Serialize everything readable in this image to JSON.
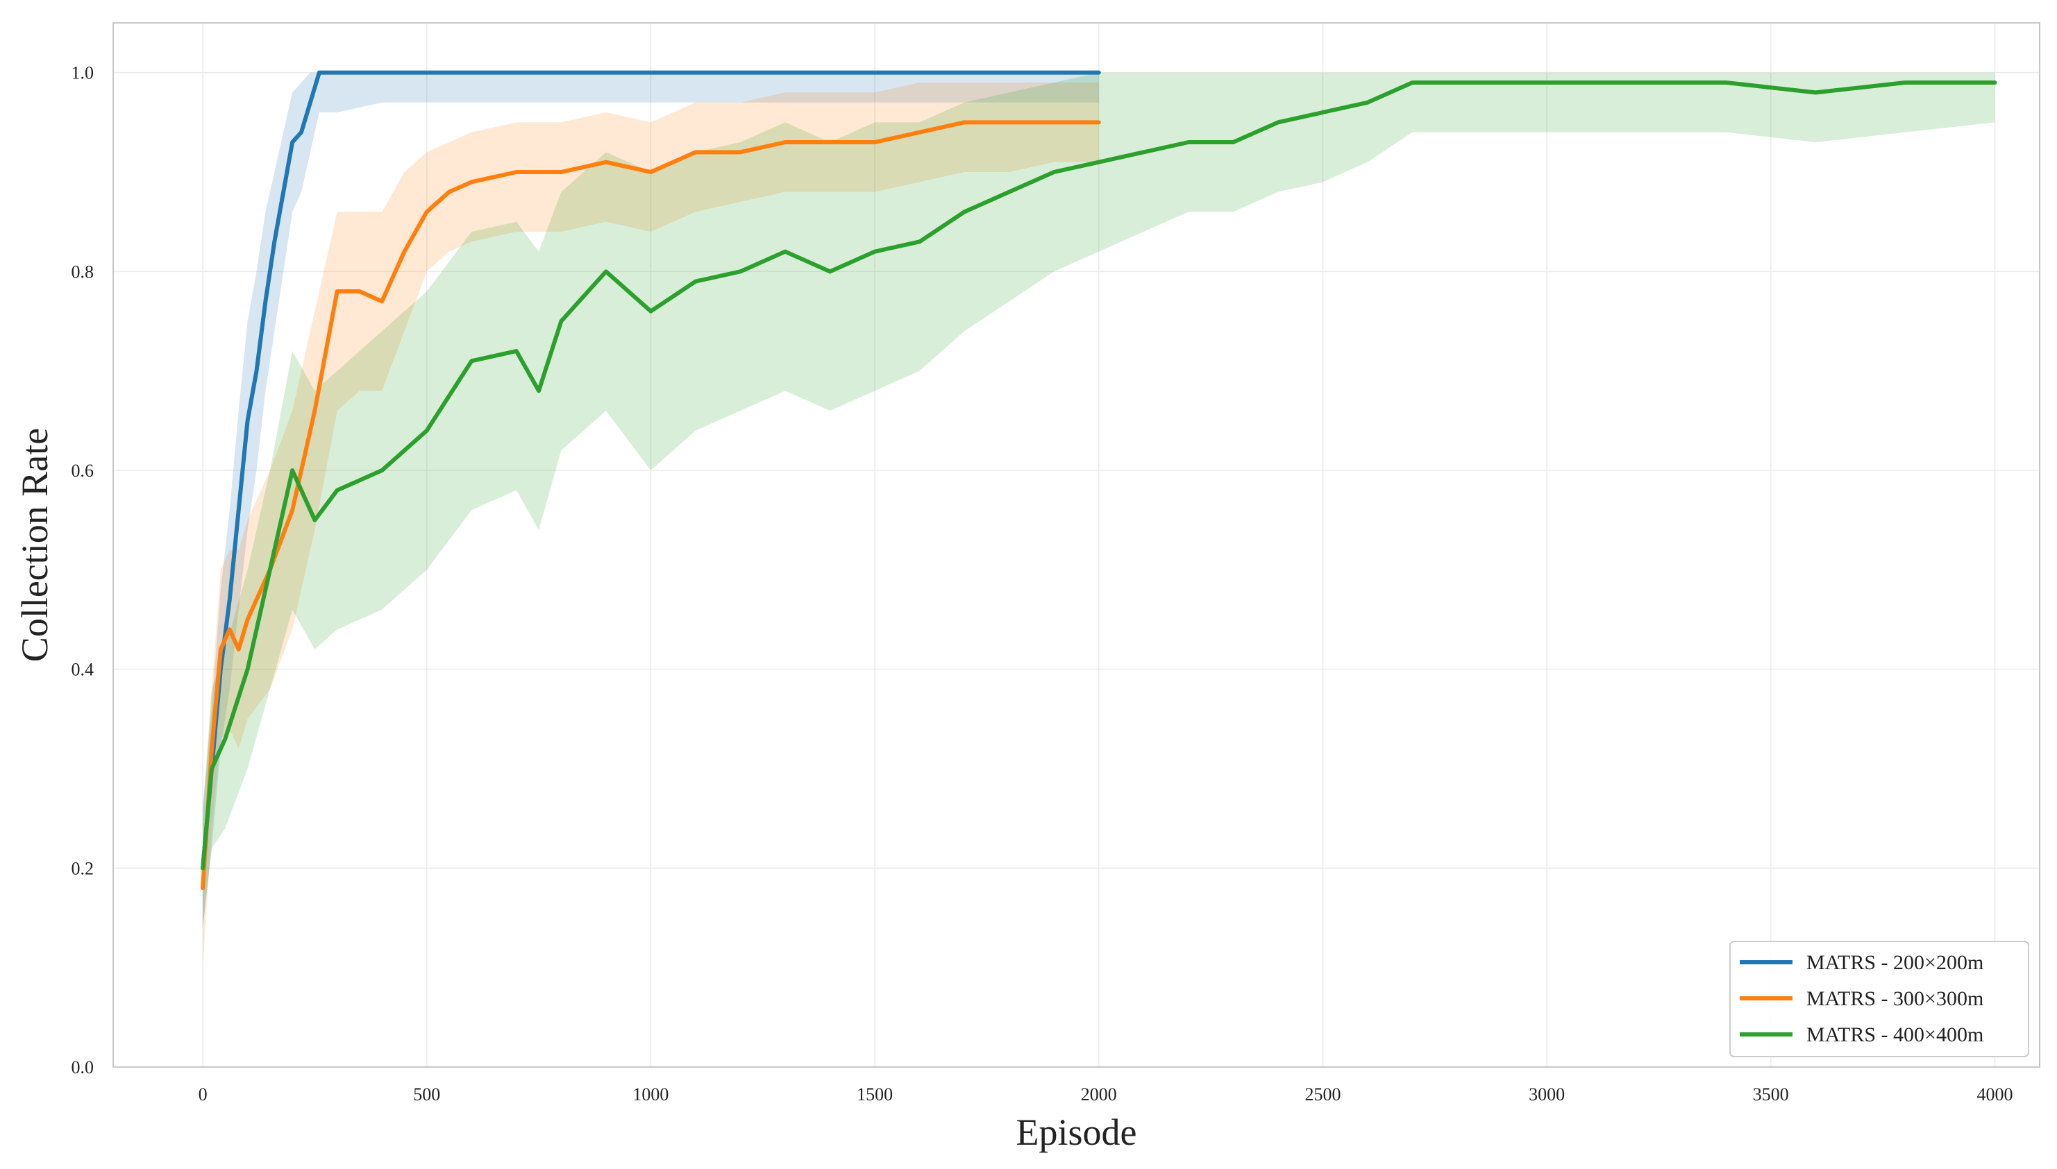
{
  "chart_data": {
    "type": "line",
    "title": "",
    "xlabel": "Episode",
    "ylabel": "Collection Rate",
    "xlim": [
      -200,
      4100
    ],
    "ylim": [
      0.0,
      1.05
    ],
    "x_ticks": [
      0,
      500,
      1000,
      1500,
      2000,
      2500,
      3000,
      3500,
      4000
    ],
    "y_ticks": [
      0.0,
      0.2,
      0.4,
      0.6,
      0.8,
      1.0
    ],
    "x_tick_labels": [
      "0",
      "500",
      "1000",
      "1500",
      "2000",
      "2500",
      "3000",
      "3500",
      "4000"
    ],
    "y_tick_labels": [
      "0.0",
      "0.2",
      "0.4",
      "0.6",
      "0.8",
      "1.0"
    ],
    "grid": true,
    "legend_position": "bottom-right",
    "series": [
      {
        "name": "MATRS - 200×200m",
        "color": "#1f77b4",
        "x": [
          0,
          20,
          40,
          60,
          80,
          100,
          120,
          140,
          160,
          180,
          200,
          220,
          240,
          260,
          300,
          400,
          500,
          600,
          700,
          800,
          900,
          1000,
          1100,
          1200,
          1300,
          1400,
          1500,
          1600,
          1700,
          1800,
          1900,
          2000
        ],
        "y": [
          0.2,
          0.3,
          0.4,
          0.47,
          0.56,
          0.65,
          0.7,
          0.77,
          0.83,
          0.88,
          0.93,
          0.94,
          0.97,
          1.0,
          1.0,
          1.0,
          1.0,
          1.0,
          1.0,
          1.0,
          1.0,
          1.0,
          1.0,
          1.0,
          1.0,
          1.0,
          1.0,
          1.0,
          1.0,
          1.0,
          1.0,
          1.0
        ],
        "band_low": [
          0.14,
          0.22,
          0.32,
          0.38,
          0.46,
          0.54,
          0.6,
          0.68,
          0.74,
          0.8,
          0.86,
          0.88,
          0.92,
          0.96,
          0.96,
          0.97,
          0.97,
          0.97,
          0.97,
          0.97,
          0.97,
          0.97,
          0.97,
          0.97,
          0.97,
          0.97,
          0.97,
          0.97,
          0.97,
          0.97,
          0.97,
          0.97
        ],
        "band_high": [
          0.26,
          0.36,
          0.48,
          0.56,
          0.66,
          0.75,
          0.8,
          0.86,
          0.9,
          0.94,
          0.98,
          0.99,
          1.0,
          1.0,
          1.0,
          1.0,
          1.0,
          1.0,
          1.0,
          1.0,
          1.0,
          1.0,
          1.0,
          1.0,
          1.0,
          1.0,
          1.0,
          1.0,
          1.0,
          1.0,
          1.0,
          1.0
        ]
      },
      {
        "name": "MATRS - 300×300m",
        "color": "#ff7f0e",
        "x": [
          0,
          20,
          40,
          60,
          80,
          100,
          150,
          200,
          250,
          300,
          350,
          400,
          450,
          500,
          550,
          600,
          700,
          800,
          900,
          1000,
          1100,
          1200,
          1300,
          1400,
          1500,
          1600,
          1700,
          1800,
          1900,
          2000
        ],
        "y": [
          0.18,
          0.32,
          0.42,
          0.44,
          0.42,
          0.45,
          0.5,
          0.56,
          0.66,
          0.78,
          0.78,
          0.77,
          0.82,
          0.86,
          0.88,
          0.89,
          0.9,
          0.9,
          0.91,
          0.9,
          0.92,
          0.92,
          0.93,
          0.93,
          0.93,
          0.94,
          0.95,
          0.95,
          0.95,
          0.95
        ],
        "band_low": [
          0.1,
          0.24,
          0.33,
          0.34,
          0.32,
          0.35,
          0.38,
          0.44,
          0.54,
          0.66,
          0.68,
          0.68,
          0.74,
          0.8,
          0.82,
          0.83,
          0.84,
          0.84,
          0.85,
          0.84,
          0.86,
          0.87,
          0.88,
          0.88,
          0.88,
          0.89,
          0.9,
          0.9,
          0.91,
          0.91
        ],
        "band_high": [
          0.24,
          0.38,
          0.5,
          0.52,
          0.52,
          0.55,
          0.6,
          0.66,
          0.76,
          0.86,
          0.86,
          0.86,
          0.9,
          0.92,
          0.93,
          0.94,
          0.95,
          0.95,
          0.96,
          0.95,
          0.97,
          0.97,
          0.98,
          0.98,
          0.98,
          0.99,
          0.99,
          0.99,
          0.99,
          0.99
        ]
      },
      {
        "name": "MATRS - 400×400m",
        "color": "#2ca02c",
        "x": [
          0,
          20,
          50,
          100,
          150,
          200,
          250,
          300,
          400,
          500,
          600,
          700,
          750,
          800,
          900,
          1000,
          1100,
          1200,
          1300,
          1400,
          1500,
          1600,
          1700,
          1800,
          1900,
          2000,
          2100,
          2200,
          2300,
          2400,
          2500,
          2600,
          2700,
          2800,
          2900,
          3000,
          3200,
          3400,
          3600,
          3800,
          4000
        ],
        "y": [
          0.2,
          0.3,
          0.33,
          0.4,
          0.5,
          0.6,
          0.55,
          0.58,
          0.6,
          0.64,
          0.71,
          0.72,
          0.68,
          0.75,
          0.8,
          0.76,
          0.79,
          0.8,
          0.82,
          0.8,
          0.82,
          0.83,
          0.86,
          0.88,
          0.9,
          0.91,
          0.92,
          0.93,
          0.93,
          0.95,
          0.96,
          0.97,
          0.99,
          0.99,
          0.99,
          0.99,
          0.99,
          0.99,
          0.98,
          0.99,
          0.99
        ],
        "band_low": [
          0.14,
          0.22,
          0.24,
          0.3,
          0.38,
          0.46,
          0.42,
          0.44,
          0.46,
          0.5,
          0.56,
          0.58,
          0.54,
          0.62,
          0.66,
          0.6,
          0.64,
          0.66,
          0.68,
          0.66,
          0.68,
          0.7,
          0.74,
          0.77,
          0.8,
          0.82,
          0.84,
          0.86,
          0.86,
          0.88,
          0.89,
          0.91,
          0.94,
          0.94,
          0.94,
          0.94,
          0.94,
          0.94,
          0.93,
          0.94,
          0.95
        ],
        "band_high": [
          0.26,
          0.38,
          0.42,
          0.5,
          0.6,
          0.72,
          0.68,
          0.7,
          0.74,
          0.78,
          0.84,
          0.85,
          0.82,
          0.88,
          0.92,
          0.9,
          0.92,
          0.93,
          0.95,
          0.93,
          0.95,
          0.95,
          0.97,
          0.98,
          0.99,
          1.0,
          1.0,
          1.0,
          1.0,
          1.0,
          1.0,
          1.0,
          1.0,
          1.0,
          1.0,
          1.0,
          1.0,
          1.0,
          1.0,
          1.0,
          1.0
        ]
      }
    ]
  }
}
